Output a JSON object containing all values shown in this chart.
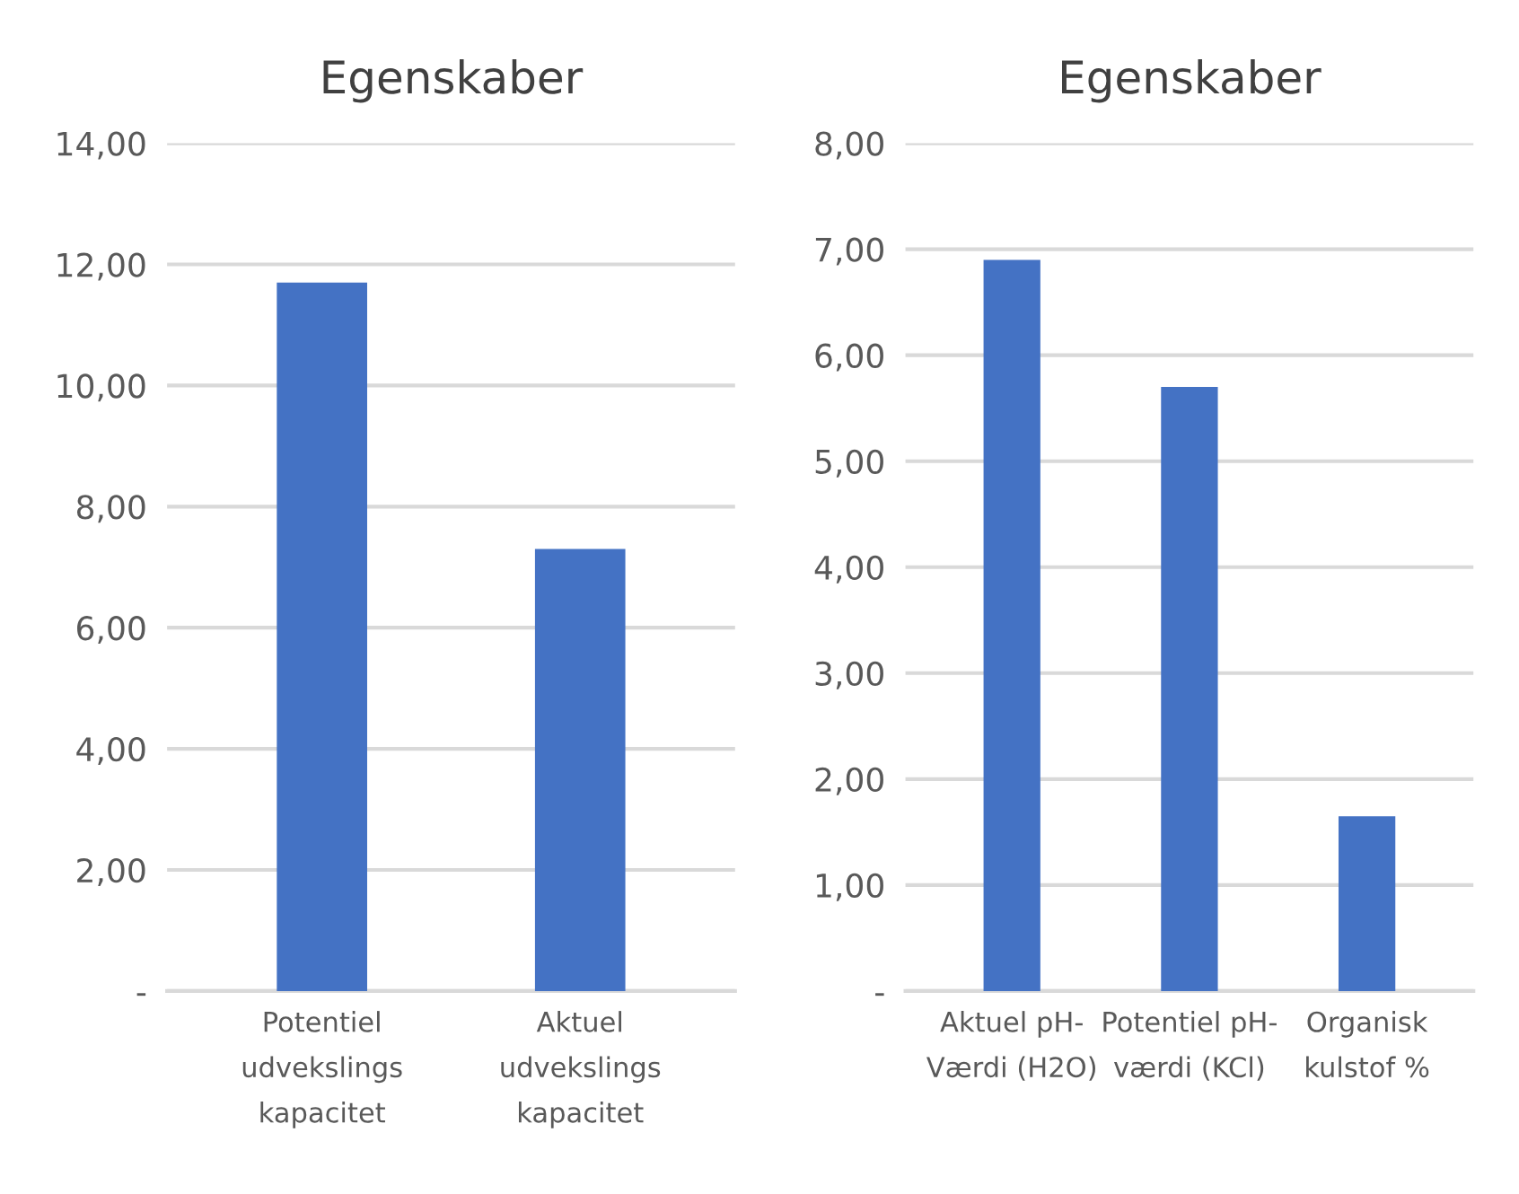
{
  "chart_data": [
    {
      "type": "bar",
      "title": "Egenskaber",
      "categories": [
        "Potentiel\nudvekslings\nkapacitet",
        "Aktuel\nudvekslings\nkapacitet"
      ],
      "values": [
        11.7,
        7.3
      ],
      "color": "#4472c4",
      "ylim": [
        0,
        14
      ],
      "yticks": [
        {
          "value": 0,
          "label": "-"
        },
        {
          "value": 2,
          "label": "2,00"
        },
        {
          "value": 4,
          "label": "4,00"
        },
        {
          "value": 6,
          "label": "6,00"
        },
        {
          "value": 8,
          "label": "8,00"
        },
        {
          "value": 10,
          "label": "10,00"
        },
        {
          "value": 12,
          "label": "12,00"
        },
        {
          "value": 14,
          "label": "14,00"
        }
      ],
      "grid": "y",
      "legend": false
    },
    {
      "type": "bar",
      "title": "Egenskaber",
      "categories": [
        "Aktuel pH-\nVærdi (H2O)",
        "Potentiel pH-\nværdi (KCl)",
        "Organisk\nkulstof %"
      ],
      "values": [
        6.9,
        5.7,
        1.65
      ],
      "color": "#4472c4",
      "ylim": [
        0,
        8
      ],
      "yticks": [
        {
          "value": 0,
          "label": "-"
        },
        {
          "value": 1,
          "label": "1,00"
        },
        {
          "value": 2,
          "label": "2,00"
        },
        {
          "value": 3,
          "label": "3,00"
        },
        {
          "value": 4,
          "label": "4,00"
        },
        {
          "value": 5,
          "label": "5,00"
        },
        {
          "value": 6,
          "label": "6,00"
        },
        {
          "value": 7,
          "label": "7,00"
        },
        {
          "value": 8,
          "label": "8,00"
        }
      ],
      "grid": "y",
      "legend": false
    }
  ]
}
